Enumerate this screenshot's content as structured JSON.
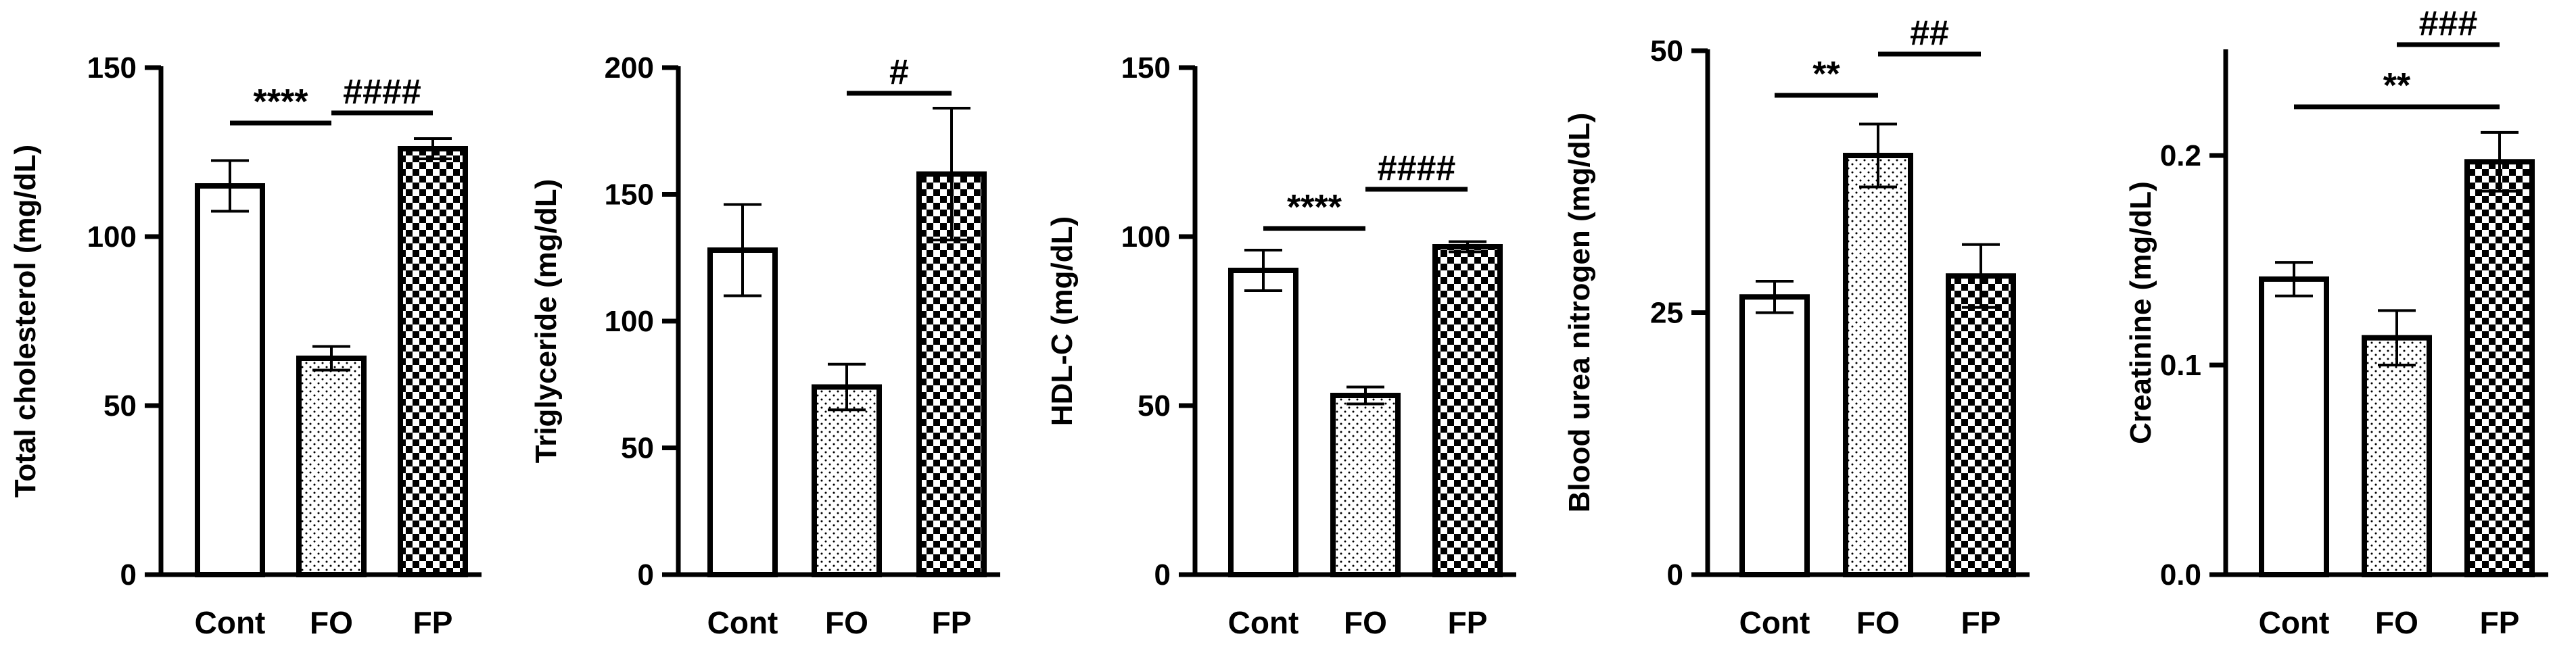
{
  "chart_data": [
    {
      "type": "bar",
      "categories": [
        "Cont",
        "FO",
        "FP"
      ],
      "values": [
        115,
        64,
        126
      ],
      "errors": [
        7.5,
        3.5,
        3
      ],
      "ylabel": "Total cholesterol (mg/dL)",
      "ylim": [
        0,
        150
      ],
      "yticks": [
        0,
        50,
        100,
        150
      ],
      "annotations": [
        {
          "from": 0,
          "to": 1,
          "label": "****"
        },
        {
          "from": 1,
          "to": 2,
          "label": "####"
        }
      ]
    },
    {
      "type": "bar",
      "categories": [
        "Cont",
        "FO",
        "FP"
      ],
      "values": [
        128,
        74,
        158
      ],
      "errors": [
        18,
        9,
        26
      ],
      "ylabel": "Triglyceride (mg/dL)",
      "ylim": [
        0,
        200
      ],
      "yticks": [
        0,
        50,
        100,
        150,
        200
      ],
      "annotations": [
        {
          "from": 1,
          "to": 2,
          "label": "#"
        }
      ]
    },
    {
      "type": "bar",
      "categories": [
        "Cont",
        "FO",
        "FP"
      ],
      "values": [
        90,
        53,
        97
      ],
      "errors": [
        6,
        2.5,
        1.5
      ],
      "ylabel": "HDL-C (mg/dL)",
      "ylim": [
        0,
        150
      ],
      "yticks": [
        0,
        50,
        100,
        150
      ],
      "annotations": [
        {
          "from": 0,
          "to": 1,
          "label": "****"
        },
        {
          "from": 1,
          "to": 2,
          "label": "####"
        }
      ]
    },
    {
      "type": "bar",
      "categories": [
        "Cont",
        "FO",
        "FP"
      ],
      "values": [
        26.5,
        40,
        28.5
      ],
      "errors": [
        1.5,
        3,
        3
      ],
      "ylabel": "Blood urea nitrogen (mg/dL)",
      "ylim": [
        0,
        50
      ],
      "yticks": [
        0,
        25,
        50
      ],
      "annotations": [
        {
          "from": 0,
          "to": 1,
          "label": "**"
        },
        {
          "from": 1,
          "to": 2,
          "label": "##"
        }
      ]
    },
    {
      "type": "bar",
      "categories": [
        "Cont",
        "FO",
        "FP"
      ],
      "values": [
        0.141,
        0.113,
        0.197
      ],
      "errors": [
        0.008,
        0.013,
        0.014
      ],
      "ylabel": "Creatinine (mg/dL)",
      "ylim": [
        0,
        0.25
      ],
      "yticks": [
        "0.0",
        "0.1",
        "0.2"
      ],
      "annotations": [
        {
          "from": 1,
          "to": 2,
          "label": "###"
        },
        {
          "from": 0,
          "to": 2,
          "label": "**"
        }
      ]
    }
  ]
}
